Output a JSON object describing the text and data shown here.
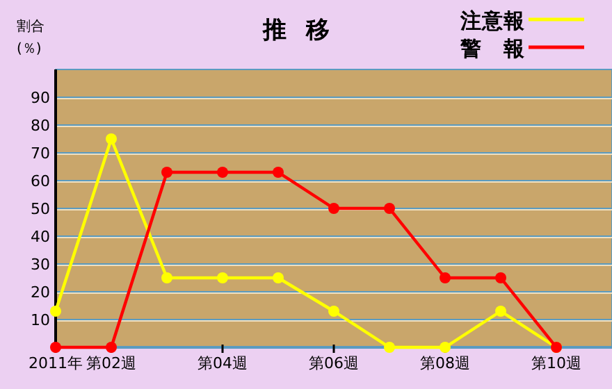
{
  "chart_data": {
    "type": "line",
    "title": "推移",
    "ylabel": "割合\n(％)",
    "categories": [
      "2011年",
      "第02週",
      null,
      "第04週",
      null,
      "第06週",
      null,
      "第08週",
      null,
      "第10週"
    ],
    "series": [
      {
        "name": "注意報",
        "color": "#ffff00",
        "values": [
          13,
          75,
          25,
          25,
          25,
          13,
          0,
          0,
          13,
          0
        ]
      },
      {
        "name": "警報",
        "color": "#ff0000",
        "values": [
          0,
          0,
          63,
          63,
          63,
          50,
          50,
          25,
          25,
          0
        ]
      }
    ],
    "ylim": [
      0,
      100
    ],
    "yticks": [
      10,
      20,
      30,
      40,
      50,
      60,
      70,
      80,
      90
    ],
    "grid": "y",
    "legend": "top right",
    "marker": "circle",
    "line_style": "solid"
  }
}
